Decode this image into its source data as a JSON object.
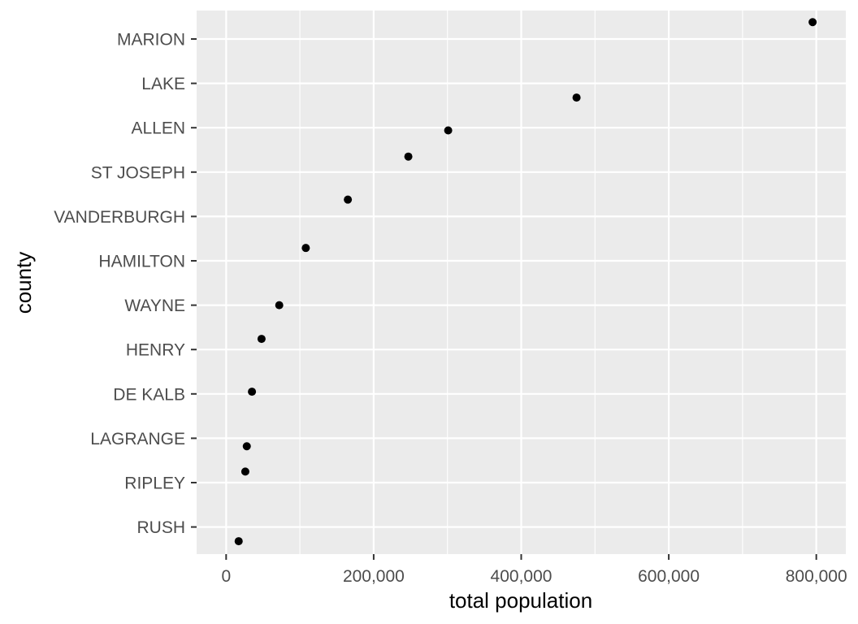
{
  "chart_data": {
    "type": "scatter",
    "title": "",
    "xlabel": "total population",
    "ylabel": "county",
    "x_ticks": [
      0,
      200000,
      400000,
      600000,
      800000
    ],
    "x_tick_labels": [
      "0",
      "200,000",
      "400,000",
      "600,000",
      "800,000"
    ],
    "xlim": [
      -40000,
      840000
    ],
    "categories": [
      "MARION",
      "LAKE",
      "ALLEN",
      "ST JOSEPH",
      "VANDERBURGH",
      "HAMILTON",
      "WAYNE",
      "HENRY",
      "DE KALB",
      "LAGRANGE",
      "RIPLEY",
      "RUSH"
    ],
    "points": [
      {
        "county": "MARION",
        "x": 795000,
        "y_offset": 0.38
      },
      {
        "county": "LAKE",
        "x": 475000,
        "y_offset": -0.32
      },
      {
        "county": "ALLEN",
        "x": 301000,
        "y_offset": -0.06
      },
      {
        "county": "ST JOSEPH",
        "x": 247000,
        "y_offset": 0.35
      },
      {
        "county": "VANDERBURGH",
        "x": 165000,
        "y_offset": 0.38
      },
      {
        "county": "HAMILTON",
        "x": 108000,
        "y_offset": 0.29
      },
      {
        "county": "WAYNE",
        "x": 72000,
        "y_offset": 0.0
      },
      {
        "county": "HENRY",
        "x": 48000,
        "y_offset": 0.24
      },
      {
        "county": "DE KALB",
        "x": 35000,
        "y_offset": 0.05
      },
      {
        "county": "LAGRANGE",
        "x": 28000,
        "y_offset": -0.18
      },
      {
        "county": "RIPLEY",
        "x": 26000,
        "y_offset": 0.25
      },
      {
        "county": "RUSH",
        "x": 17000,
        "y_offset": -0.32
      }
    ],
    "background": "#ebebeb",
    "grid": true,
    "grid_color": "#ffffff",
    "point_color": "#000000",
    "tick_label_color": "#4d4d4d"
  }
}
